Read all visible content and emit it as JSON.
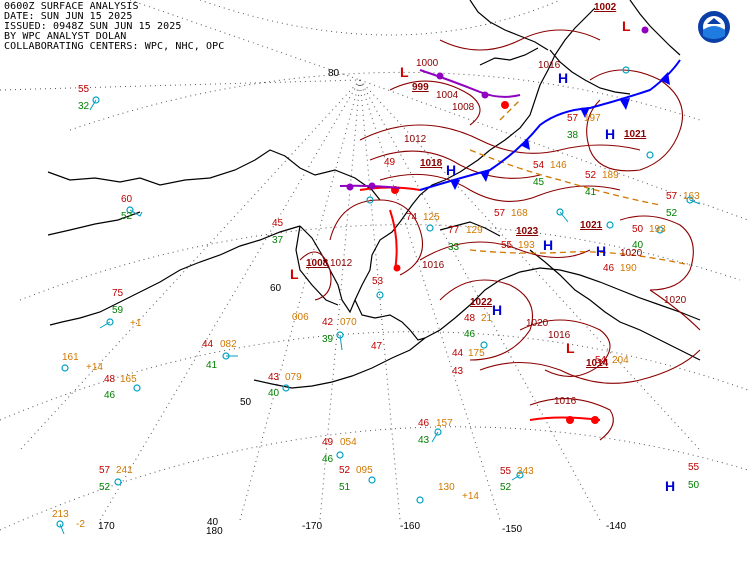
{
  "header": {
    "line1": "0600Z SURFACE ANALYSIS",
    "line2": "DATE: SUN JUN 15 2025",
    "line3": "ISSUED: 0948Z SUN JUN 15 2025",
    "line4": "BY WPC ANALYST DOLAN",
    "line5": "COLLABORATING CENTERS: WPC, NHC, OPC"
  },
  "lat_labels": {
    "l80": "80",
    "l60": "60",
    "l50": "50",
    "l40": "40"
  },
  "lon_labels": {
    "w170": "170",
    "e180": "180",
    "w170b": "-170",
    "w160": "-160",
    "w150": "-150",
    "w140": "-140"
  },
  "pressure_centers": {
    "L1": "L",
    "L1p": "999",
    "L2": "L",
    "L2p": "1008",
    "L3": "L",
    "L3p": "1014",
    "L4": "L",
    "L5": "L",
    "L5p": "1002",
    "H1": "H",
    "H1p": "1022",
    "H2": "H",
    "H2p": "1023",
    "H3": "H",
    "H3p": "1021",
    "H4": "H",
    "H4p": "1018",
    "H5": "H",
    "H5p": "1021",
    "H6": "H",
    "H7": "H"
  },
  "isobars": {
    "i1000": "1000",
    "i1004": "1004",
    "i1008": "1008",
    "i1012": "1012",
    "i1016a": "1016",
    "i1016b": "1016",
    "i1016c": "1016",
    "i1020a": "1020",
    "i1020b": "1020",
    "i1020c": "1020",
    "i1016d": "1016",
    "i1012b": "1012"
  },
  "stations": [
    {
      "t": "55",
      "d": "32",
      "p": ""
    },
    {
      "t": "60",
      "d": "52",
      "p": ""
    },
    {
      "t": "75",
      "d": "59",
      "p": "+1"
    },
    {
      "t": "44",
      "d": "41",
      "p": "082"
    },
    {
      "t": "161",
      "d": "",
      "p": "+14"
    },
    {
      "t": "48",
      "d": "46",
      "p": "165"
    },
    {
      "t": "43",
      "d": "40",
      "p": "079"
    },
    {
      "t": "42",
      "d": "39",
      "p": "070"
    },
    {
      "t": "006",
      "d": "",
      "p": ""
    },
    {
      "t": "49",
      "d": "46",
      "p": "054"
    },
    {
      "t": "52",
      "d": "51",
      "p": "095"
    },
    {
      "t": "57",
      "d": "52",
      "p": "241"
    },
    {
      "t": "213",
      "d": "",
      "p": "-2"
    },
    {
      "t": "46",
      "d": "43",
      "p": "157"
    },
    {
      "t": "44",
      "d": "",
      "p": "175"
    },
    {
      "t": "130",
      "d": "",
      "p": "+14"
    },
    {
      "t": "55",
      "d": "52",
      "p": "343"
    },
    {
      "t": "48",
      "d": "46",
      "p": "21"
    },
    {
      "t": "45",
      "d": "37",
      "p": ""
    },
    {
      "t": "77",
      "d": "33",
      "p": "129"
    },
    {
      "t": "74",
      "d": "",
      "p": "125"
    },
    {
      "t": "57",
      "d": "",
      "p": "168"
    },
    {
      "t": "55",
      "d": "",
      "p": "193"
    },
    {
      "t": "54",
      "d": "45",
      "p": "146"
    },
    {
      "t": "52",
      "d": "41",
      "p": "189"
    },
    {
      "t": "57",
      "d": "38",
      "p": "197"
    },
    {
      "t": "50",
      "d": "40",
      "p": "193"
    },
    {
      "t": "46",
      "d": "",
      "p": "190"
    },
    {
      "t": "57",
      "d": "52",
      "p": "163"
    },
    {
      "t": "54",
      "d": "",
      "p": "204"
    },
    {
      "t": "43",
      "d": "",
      "p": ""
    },
    {
      "t": "55",
      "d": "50",
      "p": ""
    },
    {
      "t": "49",
      "d": "",
      "p": ""
    },
    {
      "t": "53",
      "d": "",
      "p": ""
    },
    {
      "t": "47",
      "d": "",
      "p": ""
    }
  ]
}
